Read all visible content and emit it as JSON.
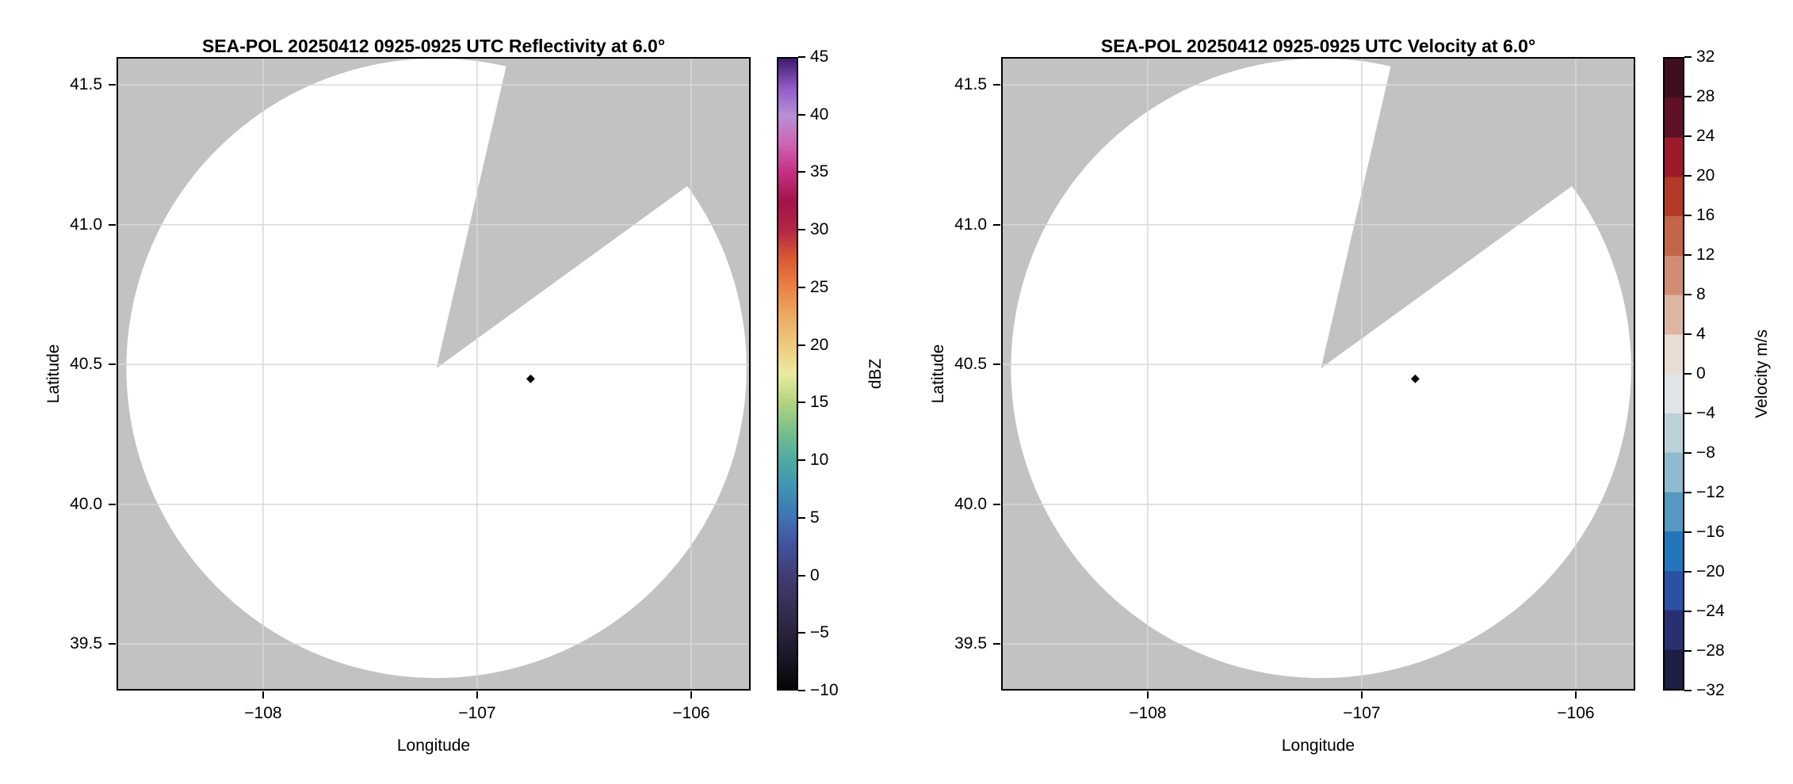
{
  "figure_bg": "#ffffff",
  "chart_data": [
    {
      "type": "radar_ppi_map",
      "field": "Reflectivity",
      "title": "SEA-POL 20250412 0925-0925 UTC Reflectivity at 6.0°",
      "xlabel": "Longitude",
      "ylabel": "Latitude",
      "xlim": [
        -108.685,
        -105.722
      ],
      "ylim": [
        39.334,
        41.6
      ],
      "xticks": [
        -108,
        -107,
        -106
      ],
      "xtick_labels": [
        "−108",
        "−107",
        "−106"
      ],
      "yticks": [
        41.5,
        41.0,
        40.5,
        40.0,
        39.5
      ],
      "ytick_labels": [
        "41.5",
        "41.0",
        "40.5",
        "40.0",
        "39.5"
      ],
      "grid": true,
      "grid_color": "#d8d8d8",
      "no_data_color": "#c2c2c2",
      "scan_area_color": "#ffffff",
      "scan": {
        "center_lon": -107.19,
        "center_lat": 40.487,
        "radius_lat_deg": 1.108,
        "blocked_azimuth_deg": [
          13,
          54
        ]
      },
      "echo_marker": {
        "lon": -106.75,
        "lat": 40.449,
        "color": "#0a0a0a",
        "shape": "diamond"
      },
      "colorbar": {
        "label": "dBZ",
        "min": -10,
        "max": 45,
        "ticks": [
          45,
          40,
          35,
          30,
          25,
          20,
          15,
          10,
          5,
          0,
          -5,
          -10
        ],
        "tick_labels": [
          "45",
          "40",
          "35",
          "30",
          "25",
          "20",
          "15",
          "10",
          "5",
          "0",
          "−5",
          "−10"
        ],
        "style": "smooth",
        "stops": [
          [
            -10,
            "#060507"
          ],
          [
            -7.5,
            "#191523"
          ],
          [
            -5,
            "#2b233c"
          ],
          [
            -2.5,
            "#383159"
          ],
          [
            0,
            "#403e75"
          ],
          [
            2.5,
            "#41519d"
          ],
          [
            5,
            "#3e73b4"
          ],
          [
            7.5,
            "#3f93b3"
          ],
          [
            10,
            "#4daba0"
          ],
          [
            12.5,
            "#79bf8b"
          ],
          [
            15,
            "#b3d47f"
          ],
          [
            17.5,
            "#e9ec9f"
          ],
          [
            20,
            "#eec97e"
          ],
          [
            22.5,
            "#ecaa62"
          ],
          [
            25,
            "#e98245"
          ],
          [
            27.5,
            "#da5a32"
          ],
          [
            30,
            "#b52646"
          ],
          [
            32.5,
            "#a31349"
          ],
          [
            35,
            "#c62e80"
          ],
          [
            37.5,
            "#cd63b3"
          ],
          [
            40,
            "#b890d5"
          ],
          [
            42.5,
            "#8e5ac6"
          ],
          [
            45,
            "#3f1a6d"
          ]
        ]
      }
    },
    {
      "type": "radar_ppi_map",
      "field": "Velocity",
      "title": "SEA-POL 20250412 0925-0925 UTC Velocity at 6.0°",
      "xlabel": "Longitude",
      "ylabel": "Latitude",
      "xlim": [
        -108.685,
        -105.722
      ],
      "ylim": [
        39.334,
        41.6
      ],
      "xticks": [
        -108,
        -107,
        -106
      ],
      "xtick_labels": [
        "−108",
        "−107",
        "−106"
      ],
      "yticks": [
        41.5,
        41.0,
        40.5,
        40.0,
        39.5
      ],
      "ytick_labels": [
        "41.5",
        "41.0",
        "40.5",
        "40.0",
        "39.5"
      ],
      "grid": true,
      "grid_color": "#d8d8d8",
      "no_data_color": "#c2c2c2",
      "scan_area_color": "#ffffff",
      "scan": {
        "center_lon": -107.19,
        "center_lat": 40.487,
        "radius_lat_deg": 1.108,
        "blocked_azimuth_deg": [
          13,
          54
        ]
      },
      "echo_marker": {
        "lon": -106.75,
        "lat": 40.449,
        "color": "#0a0a0a",
        "shape": "diamond"
      },
      "colorbar": {
        "label": "Velocity m/s",
        "min": -32,
        "max": 32,
        "ticks": [
          32,
          28,
          24,
          20,
          16,
          12,
          8,
          4,
          0,
          -4,
          -8,
          -12,
          -16,
          -20,
          -24,
          -28,
          -32
        ],
        "tick_labels": [
          "32",
          "28",
          "24",
          "20",
          "16",
          "12",
          "8",
          "4",
          "0",
          "−4",
          "−8",
          "−12",
          "−16",
          "−20",
          "−24",
          "−28",
          "−32"
        ],
        "style": "discrete",
        "segments": [
          [
            -32,
            "#1d1e43"
          ],
          [
            -28,
            "#293070"
          ],
          [
            -24,
            "#2c51a4"
          ],
          [
            -20,
            "#2376bc"
          ],
          [
            -16,
            "#5599c1"
          ],
          [
            -12,
            "#8fbacf"
          ],
          [
            -8,
            "#bdd1d9"
          ],
          [
            -4,
            "#dfe4e6"
          ],
          [
            0,
            "#e9dcd5"
          ],
          [
            4,
            "#ddb5a3"
          ],
          [
            8,
            "#cf8e73"
          ],
          [
            12,
            "#c36549"
          ],
          [
            16,
            "#b23a26"
          ],
          [
            20,
            "#9b1b2b"
          ],
          [
            24,
            "#5f1126"
          ],
          [
            28,
            "#400f1f"
          ]
        ]
      }
    }
  ]
}
